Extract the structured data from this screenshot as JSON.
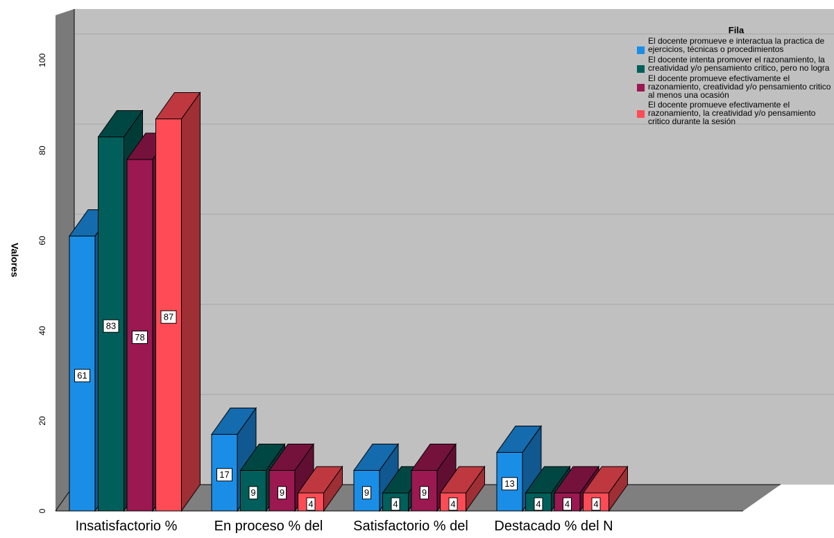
{
  "chart_data": {
    "type": "bar",
    "ylabel": "Valores",
    "xlabel": "",
    "ylim": [
      0,
      110
    ],
    "yticks": [
      0,
      20,
      40,
      60,
      80,
      100
    ],
    "grid": true,
    "legend_position": "right",
    "legend_title": "Fila",
    "categories": [
      "Insatisfactorio %",
      "En proceso % del",
      "Satisfactorio % del",
      "Destacado % del N"
    ],
    "series": [
      {
        "name": "El docente promueve e interactua la practica de ejercicios, técnicas o procedimientos",
        "color": "#1a8ee6",
        "values": [
          61,
          17,
          9,
          13
        ]
      },
      {
        "name": "El docente intenta promover el razonamiento, la creatividad y/o pensamiento critico, pero no logra",
        "color": "#005f5a",
        "values": [
          83,
          9,
          4,
          4
        ]
      },
      {
        "name": "El docente promueve efectivamente el razonamiento, creatividad y/o pensamiento critico al menos una ocasión",
        "color": "#9b1850",
        "values": [
          78,
          9,
          9,
          4
        ]
      },
      {
        "name": "El docente promueve efectivamente el razonamiento, la creatividad y/o pensamiento critico durante la sesión",
        "color": "#ff4b55",
        "values": [
          87,
          4,
          4,
          4
        ]
      }
    ]
  }
}
